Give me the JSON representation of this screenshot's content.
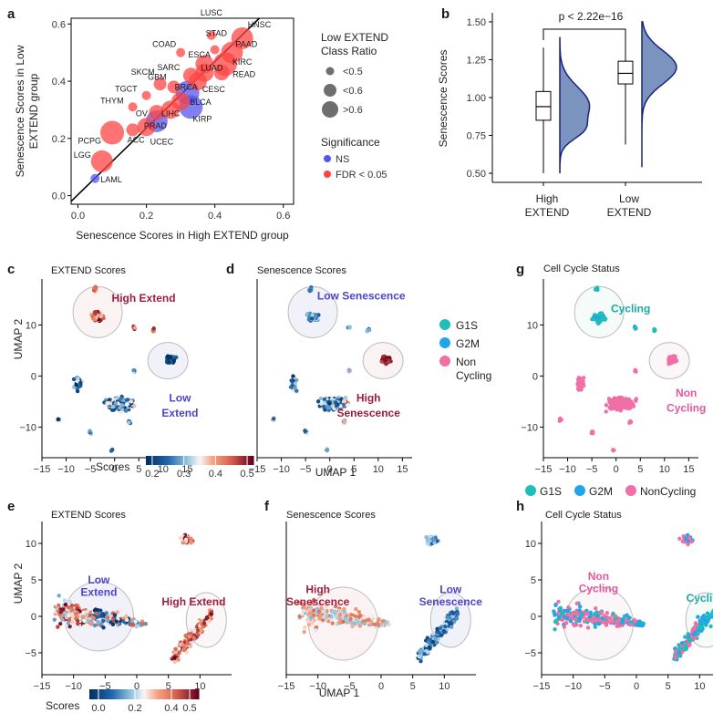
{
  "panels": {
    "a": "a",
    "b": "b",
    "c": "c",
    "d": "d",
    "e": "e",
    "f": "f",
    "g": "g",
    "h": "h"
  },
  "chart_data": [
    {
      "id": "a",
      "type": "scatter",
      "xlabel": "Senescence Scores in High EXTEND group",
      "ylabel_lines": [
        "Senescence Scores in Low",
        "EXTEND group"
      ],
      "xlim": [
        -0.02,
        0.63
      ],
      "ylim": [
        -0.03,
        0.62
      ],
      "xticks": [
        "0.0",
        "0.2",
        "0.4",
        "0.6"
      ],
      "xtick_values": [
        0,
        0.2,
        0.4,
        0.6
      ],
      "yticks": [
        "0.0",
        "0.2",
        "0.4",
        "0.6"
      ],
      "ytick_values": [
        0,
        0.2,
        0.4,
        0.6
      ],
      "legend_size_title": [
        "Low EXTEND",
        "Class Ratio"
      ],
      "legend_sizes": [
        {
          "label": "<0.5",
          "r": 0.45
        },
        {
          "label": "<0.6",
          "r": 0.6
        },
        {
          "label": ">0.6",
          "r": 0.7
        }
      ],
      "legend_color_title": "Significance",
      "legend_colors": [
        {
          "label": "NS",
          "color": "#5555ee"
        },
        {
          "label": "FDR < 0.05",
          "color": "#ff4444"
        }
      ],
      "points": [
        {
          "label": "HNSC",
          "x": 0.48,
          "y": 0.55,
          "ratio": 0.65,
          "sig": true
        },
        {
          "label": "STAD",
          "x": 0.4,
          "y": 0.51,
          "ratio": 0.45,
          "sig": true
        },
        {
          "label": "LUSC",
          "x": 0.39,
          "y": 0.56,
          "ratio": 0.45,
          "sig": true
        },
        {
          "label": "PAAD",
          "x": 0.45,
          "y": 0.5,
          "ratio": 0.65,
          "sig": true
        },
        {
          "label": "COAD",
          "x": 0.3,
          "y": 0.5,
          "ratio": 0.45,
          "sig": true
        },
        {
          "label": "ESCA",
          "x": 0.37,
          "y": 0.46,
          "ratio": 0.6,
          "sig": true
        },
        {
          "label": "KIRC",
          "x": 0.43,
          "y": 0.46,
          "ratio": 0.7,
          "sig": true
        },
        {
          "label": "SARC",
          "x": 0.33,
          "y": 0.42,
          "ratio": 0.55,
          "sig": true
        },
        {
          "label": "LUAD",
          "x": 0.37,
          "y": 0.43,
          "ratio": 0.6,
          "sig": true
        },
        {
          "label": "READ",
          "x": 0.42,
          "y": 0.43,
          "ratio": 0.55,
          "sig": true
        },
        {
          "label": "CESC",
          "x": 0.35,
          "y": 0.4,
          "ratio": 0.6,
          "sig": true
        },
        {
          "label": "GBM",
          "x": 0.28,
          "y": 0.38,
          "ratio": 0.5,
          "sig": true
        },
        {
          "label": "SKCM",
          "x": 0.24,
          "y": 0.39,
          "ratio": 0.5,
          "sig": true
        },
        {
          "label": "BRCA",
          "x": 0.32,
          "y": 0.36,
          "ratio": 0.7,
          "sig": false
        },
        {
          "label": "TGCT",
          "x": 0.2,
          "y": 0.35,
          "ratio": 0.45,
          "sig": true
        },
        {
          "label": "THYM",
          "x": 0.16,
          "y": 0.31,
          "ratio": 0.45,
          "sig": true
        },
        {
          "label": "BLCA",
          "x": 0.3,
          "y": 0.33,
          "ratio": 0.6,
          "sig": true
        },
        {
          "label": "LIHC",
          "x": 0.27,
          "y": 0.3,
          "ratio": 0.6,
          "sig": true
        },
        {
          "label": "OV",
          "x": 0.23,
          "y": 0.29,
          "ratio": 0.55,
          "sig": true
        },
        {
          "label": "KIRP",
          "x": 0.33,
          "y": 0.31,
          "ratio": 0.7,
          "sig": false
        },
        {
          "label": "PRAD",
          "x": 0.23,
          "y": 0.26,
          "ratio": 0.65,
          "sig": false
        },
        {
          "label": "UCEC",
          "x": 0.2,
          "y": 0.24,
          "ratio": 0.6,
          "sig": true
        },
        {
          "label": "ACC",
          "x": 0.16,
          "y": 0.23,
          "ratio": 0.5,
          "sig": true
        },
        {
          "label": "PCPG",
          "x": 0.1,
          "y": 0.22,
          "ratio": 0.7,
          "sig": true
        },
        {
          "label": "LGG",
          "x": 0.07,
          "y": 0.12,
          "ratio": 0.65,
          "sig": true
        },
        {
          "label": "LAML",
          "x": 0.05,
          "y": 0.06,
          "ratio": 0.45,
          "sig": false
        }
      ]
    },
    {
      "id": "b",
      "type": "box-violin",
      "ylabel": "Senescence Scores",
      "ylim": [
        0.44,
        1.56
      ],
      "yticks": [
        "0.50",
        "0.75",
        "1.00",
        "1.25",
        "1.50"
      ],
      "ytick_values": [
        0.5,
        0.75,
        1.0,
        1.25,
        1.5
      ],
      "annotation": "p < 2.22e−16",
      "groups": [
        {
          "label_lines": [
            "High",
            "EXTEND"
          ],
          "q1": 0.85,
          "median": 0.94,
          "q3": 1.04,
          "whisker_low": 0.5,
          "whisker_high": 1.33,
          "violin_min": 0.5,
          "violin_max": 1.4
        },
        {
          "label_lines": [
            "Low",
            "EXTEND"
          ],
          "q1": 1.09,
          "median": 1.16,
          "q3": 1.24,
          "whisker_low": 0.69,
          "whisker_high": 1.45,
          "violin_min": 0.54,
          "violin_max": 1.5
        }
      ]
    },
    {
      "id": "c",
      "type": "umap-scatter",
      "title": "EXTEND Scores",
      "xlim": [
        -15,
        17
      ],
      "ylim": [
        -16,
        19
      ],
      "xticks": [
        "−15",
        "−10",
        "−5",
        "0",
        "5",
        "10",
        "15"
      ],
      "xtick_values": [
        -15,
        -10,
        -5,
        0,
        5,
        10,
        15
      ],
      "yticks": [
        "−10",
        "0",
        "10"
      ],
      "ytick_values": [
        -10,
        0,
        10
      ],
      "ylabel": "UMAP 2",
      "annotations": [
        {
          "text": "High Extend",
          "color": "#a01c3c",
          "x": 6,
          "y": 14.5
        },
        {
          "text": "Low",
          "color": "#4b45c8",
          "x": 13.5,
          "y": -5
        },
        {
          "text": "Extend",
          "color": "#4b45c8",
          "x": 13.5,
          "y": -8
        }
      ],
      "colorbar": {
        "title": "Scores",
        "ticks": [
          "0.2",
          "0.3",
          "0.4",
          "0.5"
        ],
        "tick_values": [
          0.2,
          0.3,
          0.4,
          0.5
        ],
        "range": [
          0.18,
          0.52
        ]
      }
    },
    {
      "id": "d",
      "type": "umap-scatter",
      "title": "Senescence Scores",
      "xlim": [
        -15,
        17
      ],
      "ylim": [
        -16,
        19
      ],
      "xticks": [
        "−15",
        "−10",
        "−5",
        "0",
        "5",
        "10",
        "15"
      ],
      "xtick_values": [
        -15,
        -10,
        -5,
        0,
        5,
        10,
        15
      ],
      "xlabel": "UMAP 1",
      "annotations": [
        {
          "text": "Low Senescence",
          "color": "#4b45c8",
          "x": 6.5,
          "y": 15
        },
        {
          "text": "High",
          "color": "#a01c3c",
          "x": 8,
          "y": -5
        },
        {
          "text": "Senescence",
          "color": "#a01c3c",
          "x": 8,
          "y": -8
        }
      ]
    },
    {
      "id": "g",
      "type": "umap-scatter",
      "title": "Cell Cycle Status",
      "xlim": [
        -15,
        17
      ],
      "ylim": [
        -16,
        19
      ],
      "xticks": [
        "−15",
        "−10",
        "−5",
        "0",
        "5",
        "10",
        "15"
      ],
      "xtick_values": [
        -15,
        -10,
        -5,
        0,
        5,
        10,
        15
      ],
      "yticks": [
        "−10",
        "0",
        "10"
      ],
      "ytick_values": [
        -10,
        0,
        10
      ],
      "legend": [
        {
          "label": "G1S",
          "color": "#1fbfb8"
        },
        {
          "label": "G2M",
          "color": "#22a4e8"
        },
        {
          "label": "Non",
          "label2": "Cycling",
          "color": "#f06fa6"
        }
      ],
      "annotations": [
        {
          "text": "Cycling",
          "color": "#1aa9a3",
          "x": 3,
          "y": 12.5
        },
        {
          "text": "Non",
          "color": "#e7559a",
          "x": 14.5,
          "y": -4
        },
        {
          "text": "Cycling",
          "color": "#e7559a",
          "x": 14.5,
          "y": -7
        }
      ]
    },
    {
      "id": "e",
      "type": "umap-scatter",
      "title": "EXTEND Scores",
      "xlim": [
        -15,
        15
      ],
      "ylim": [
        -8,
        13
      ],
      "xticks": [
        "−15",
        "−10",
        "−5",
        "0",
        "5",
        "10"
      ],
      "xtick_values": [
        -15,
        -10,
        -5,
        0,
        5,
        10
      ],
      "yticks": [
        "−5",
        "0",
        "5",
        "10"
      ],
      "ytick_values": [
        -5,
        0,
        5,
        10
      ],
      "ylabel": "UMAP 2",
      "annotations": [
        {
          "text": "Low",
          "color": "#4b45c8",
          "x": -6,
          "y": 4.5
        },
        {
          "text": "Extend",
          "color": "#4b45c8",
          "x": -6,
          "y": 2.8
        },
        {
          "text": "High Extend",
          "color": "#a01c3c",
          "x": 9,
          "y": 1.5
        }
      ],
      "colorbar": {
        "title": "Scores",
        "ticks": [
          "0.0",
          "0.2",
          "0.4",
          "0.5"
        ],
        "tick_values": [
          0.0,
          0.2,
          0.4,
          0.5
        ],
        "range": [
          -0.05,
          0.55
        ]
      }
    },
    {
      "id": "f",
      "type": "umap-scatter",
      "title": "Senescence Scores",
      "xlim": [
        -15,
        15
      ],
      "ylim": [
        -8,
        13
      ],
      "xticks": [
        "−15",
        "−10",
        "−5",
        "0",
        "5",
        "10"
      ],
      "xtick_values": [
        -15,
        -10,
        -5,
        0,
        5,
        10
      ],
      "xlabel": "UMAP 1",
      "annotations": [
        {
          "text": "High",
          "color": "#a01c3c",
          "x": -10,
          "y": 3.2
        },
        {
          "text": "Senescence",
          "color": "#a01c3c",
          "x": -10,
          "y": 1.5
        },
        {
          "text": "Low",
          "color": "#4b45c8",
          "x": 11,
          "y": 3.2
        },
        {
          "text": "Senescence",
          "color": "#4b45c8",
          "x": 11,
          "y": 1.5
        }
      ]
    },
    {
      "id": "h",
      "type": "umap-scatter",
      "title": "Cell Cycle Status",
      "xlim": [
        -15,
        15
      ],
      "ylim": [
        -8,
        13
      ],
      "xticks": [
        "−15",
        "−10",
        "−5",
        "0",
        "5",
        "10"
      ],
      "xtick_values": [
        -15,
        -10,
        -5,
        0,
        5,
        10
      ],
      "yticks": [
        "−5",
        "0",
        "5",
        "10"
      ],
      "ytick_values": [
        -5,
        0,
        5,
        10
      ],
      "legend": [
        {
          "label": "G1S",
          "color": "#1fbfb8"
        },
        {
          "label": "G2M",
          "color": "#22a4e8"
        },
        {
          "label": "NonCycling",
          "color": "#f06fa6"
        }
      ],
      "annotations": [
        {
          "text": "Non",
          "color": "#e7559a",
          "x": -6,
          "y": 5
        },
        {
          "text": "Cycling",
          "color": "#e7559a",
          "x": -6,
          "y": 3.3
        },
        {
          "text": "Cycling",
          "color": "#1aa9a3",
          "x": 11,
          "y": 2
        }
      ]
    }
  ]
}
